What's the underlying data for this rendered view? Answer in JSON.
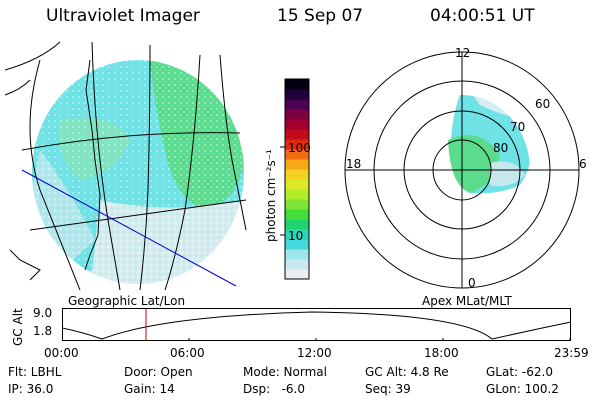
{
  "header": {
    "instrument": "Ultraviolet Imager",
    "date": "15 Sep 07",
    "time": "04:00:51 UT"
  },
  "geo_panel": {
    "label": "Geographic Lat/Lon"
  },
  "apex_panel": {
    "label": "Apex MLat/MLT",
    "mlt_labels": {
      "top": "12",
      "left": "18",
      "right": "6",
      "bottom": "0"
    },
    "lat_labels": [
      "60",
      "70",
      "80"
    ]
  },
  "colorbar": {
    "unit_label": "photon cm⁻²s⁻¹",
    "ticks": [
      "100",
      "10"
    ],
    "colors": [
      "#e8eef2",
      "#c8e8ef",
      "#9fe6ec",
      "#45d8dd",
      "#2ed6b8",
      "#1fd36e",
      "#44dd3a",
      "#7de536",
      "#b3ec2b",
      "#dce92a",
      "#f5d221",
      "#f7a818",
      "#f26b10",
      "#e02a0c",
      "#c30a1a",
      "#a1002e",
      "#7a0040",
      "#4a0054",
      "#20003a",
      "#000010"
    ]
  },
  "altitude_plot": {
    "ylabel": "GC Alt",
    "yticks": [
      "9.0",
      "1.8"
    ],
    "xticks": [
      "00:00",
      "06:00",
      "12:00",
      "18:00",
      "23:59"
    ],
    "marker_color": "#c00000"
  },
  "footer": {
    "flt": "Flt: LBHL",
    "ip": "IP: 36.0",
    "door": "Door: Open",
    "gain": "Gain: 14",
    "mode": "Mode: Normal",
    "dsp": "Dsp:   -6.0",
    "gc_alt": "GC Alt: 4.8 Re",
    "seq": "Seq: 39",
    "glat": "GLat: -62.0",
    "glon": "GLon: 100.2"
  }
}
